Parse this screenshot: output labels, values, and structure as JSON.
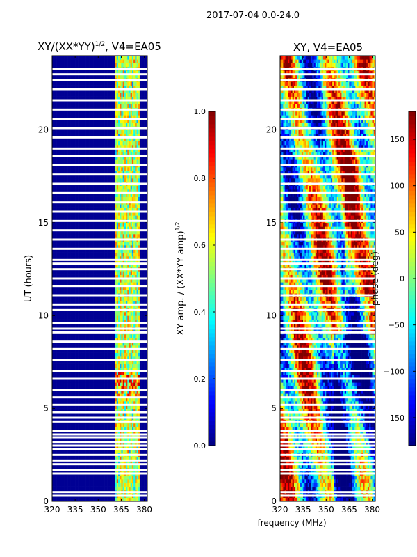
{
  "suptitle": "2017-07-04 0.0-24.0",
  "xlabel_shared": "frequency (MHz)",
  "colors": {
    "masked_row": "#ffffff",
    "jet_stops": [
      "#00007f",
      "#0000ff",
      "#007fff",
      "#00ffff",
      "#7fff7f",
      "#ffff00",
      "#ff7f00",
      "#ff0000",
      "#7f0000"
    ]
  },
  "chart_data": [
    {
      "type": "heatmap",
      "id": "amp-ratio",
      "title_main": "XY/(XX*YY)",
      "title_exp": "1/2",
      "title_suffix": ", V4=EA05",
      "ylabel": "UT (hours)",
      "xlim": [
        320,
        382
      ],
      "ylim": [
        0,
        24
      ],
      "xticks": [
        320,
        335,
        350,
        365,
        380
      ],
      "yticks": [
        0,
        5,
        10,
        15,
        20
      ],
      "signal_band_mhz": [
        361,
        377
      ],
      "colorbar": {
        "label_main": "XY amp. / (XX*YY amp)",
        "label_exp": "1/2",
        "range": [
          0.0,
          1.0
        ],
        "ticks": [
          "0.0",
          "0.2",
          "0.4",
          "0.6",
          "0.8",
          "1.0"
        ]
      }
    },
    {
      "type": "heatmap",
      "id": "phase",
      "title_main": "XY, V4=EA05",
      "xlim": [
        320,
        382
      ],
      "ylim": [
        0,
        24
      ],
      "xticks": [
        320,
        335,
        350,
        365,
        380
      ],
      "yticks": [
        0,
        5,
        10,
        15,
        20
      ],
      "colorbar": {
        "label_main": "phase (deg)",
        "range": [
          -180,
          180
        ],
        "ticks": [
          "-150",
          "-100",
          "-50",
          "0",
          "50",
          "100",
          "150"
        ]
      }
    }
  ],
  "masked_hours": [
    0.3,
    0.5,
    1.5,
    1.7,
    2.0,
    2.2,
    2.5,
    2.8,
    3.0,
    3.2,
    3.45,
    3.6,
    3.8,
    4.3,
    4.5,
    4.8,
    5.2,
    5.6,
    6.0,
    6.6,
    7.0,
    7.6,
    8.2,
    8.6,
    9.1,
    9.3,
    9.6,
    10.3,
    10.6,
    11.1,
    11.6,
    12.0,
    12.5,
    12.8,
    13.0,
    13.6,
    14.1,
    14.6,
    15.1,
    15.6,
    16.1,
    16.6,
    17.1,
    17.6,
    18.1,
    18.6,
    19.0,
    19.6,
    20.1,
    20.6,
    21.1,
    21.6,
    22.2,
    22.7,
    23.0,
    23.3
  ]
}
